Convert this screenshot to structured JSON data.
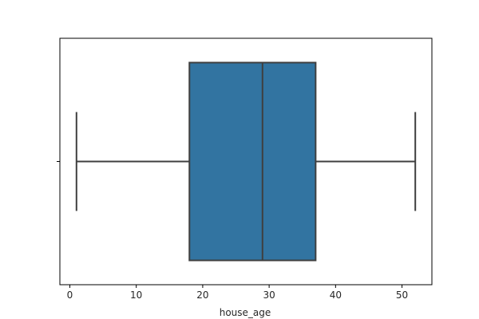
{
  "chart_data": {
    "type": "box",
    "orientation": "horizontal",
    "xlabel": "house_age",
    "ylabel": "",
    "xlim": [
      -1.5,
      54.5
    ],
    "x_ticks": [
      0,
      10,
      20,
      30,
      40,
      50
    ],
    "x_tick_labels": [
      "0",
      "10",
      "20",
      "30",
      "40",
      "50"
    ],
    "grid": false,
    "box": {
      "whisker_low": 1,
      "q1": 18,
      "median": 29,
      "q3": 37,
      "whisker_high": 52
    },
    "colors": {
      "box_fill": "#3274a1",
      "line": "#3f3f3f",
      "text": "#262626",
      "frame": "#000000"
    }
  }
}
